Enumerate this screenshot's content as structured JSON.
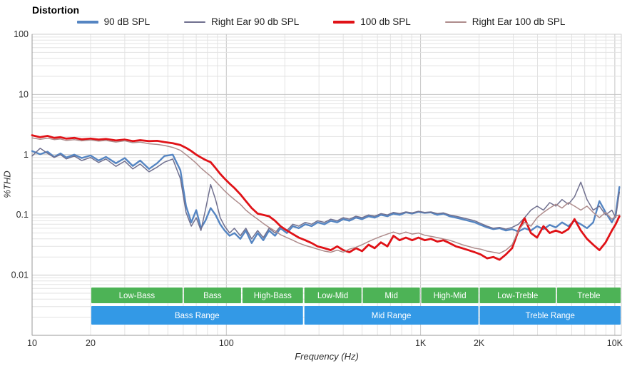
{
  "title": "Distortion",
  "chart_data": {
    "type": "line",
    "title": "Distortion",
    "xlabel": "Frequency (Hz)",
    "ylabel": "%THD",
    "x_scale": "log",
    "y_scale": "log",
    "grid": true,
    "legend_position": "top",
    "xlim": [
      10,
      10800
    ],
    "ylim": [
      0.001,
      100
    ],
    "x_ticks": [
      {
        "v": 10,
        "label": "10"
      },
      {
        "v": 20,
        "label": "20"
      },
      {
        "v": 100,
        "label": "100"
      },
      {
        "v": 1000,
        "label": "1K"
      },
      {
        "v": 2000,
        "label": "2K"
      },
      {
        "v": 10000,
        "label": "10K"
      }
    ],
    "y_ticks": [
      {
        "v": 100,
        "label": "100"
      },
      {
        "v": 10,
        "label": "10"
      },
      {
        "v": 1,
        "label": "1"
      },
      {
        "v": 0.1,
        "label": "0.1"
      },
      {
        "v": 0.01,
        "label": "0.01"
      }
    ],
    "x": [
      10,
      11,
      12,
      13,
      14,
      15,
      16.5,
      18,
      20,
      22,
      24,
      27,
      30,
      33,
      36,
      40,
      44,
      48,
      53,
      58,
      62,
      66,
      70,
      74,
      78,
      83,
      88,
      93,
      98,
      104,
      110,
      118,
      126,
      135,
      145,
      155,
      166,
      178,
      190,
      205,
      220,
      236,
      255,
      275,
      295,
      320,
      345,
      372,
      400,
      430,
      465,
      500,
      540,
      580,
      625,
      675,
      725,
      780,
      840,
      905,
      975,
      1050,
      1130,
      1220,
      1310,
      1410,
      1520,
      1640,
      1760,
      1900,
      2040,
      2200,
      2370,
      2550,
      2750,
      2960,
      3190,
      3430,
      3700,
      3980,
      4290,
      4620,
      4970,
      5350,
      5760,
      6200,
      6680,
      7190,
      7740,
      8330,
      8970,
      9660,
      10100,
      10560
    ],
    "series": [
      {
        "name": "90 dB SPL",
        "color": "#5585c2",
        "width": 2.4,
        "values": [
          1.15,
          1.02,
          1.12,
          0.92,
          1.05,
          0.9,
          1.0,
          0.88,
          0.97,
          0.8,
          0.92,
          0.72,
          0.88,
          0.65,
          0.8,
          0.58,
          0.72,
          0.95,
          1.0,
          0.55,
          0.14,
          0.075,
          0.12,
          0.06,
          0.08,
          0.13,
          0.1,
          0.07,
          0.055,
          0.045,
          0.05,
          0.04,
          0.055,
          0.034,
          0.05,
          0.038,
          0.055,
          0.045,
          0.06,
          0.05,
          0.065,
          0.06,
          0.07,
          0.065,
          0.075,
          0.07,
          0.08,
          0.075,
          0.085,
          0.08,
          0.09,
          0.085,
          0.095,
          0.09,
          0.1,
          0.095,
          0.105,
          0.1,
          0.11,
          0.105,
          0.112,
          0.108,
          0.11,
          0.1,
          0.105,
          0.095,
          0.09,
          0.085,
          0.08,
          0.075,
          0.068,
          0.062,
          0.058,
          0.06,
          0.055,
          0.058,
          0.053,
          0.06,
          0.055,
          0.065,
          0.058,
          0.068,
          0.062,
          0.075,
          0.065,
          0.08,
          0.07,
          0.06,
          0.075,
          0.17,
          0.11,
          0.075,
          0.1,
          0.29
        ]
      },
      {
        "name": "Right Ear 90 db SPL",
        "color": "#70708f",
        "width": 1.5,
        "values": [
          0.95,
          1.28,
          1.05,
          0.9,
          1.0,
          0.85,
          0.95,
          0.8,
          0.9,
          0.74,
          0.85,
          0.64,
          0.78,
          0.58,
          0.7,
          0.52,
          0.62,
          0.75,
          0.85,
          0.4,
          0.11,
          0.065,
          0.09,
          0.055,
          0.12,
          0.32,
          0.18,
          0.09,
          0.065,
          0.05,
          0.06,
          0.045,
          0.06,
          0.04,
          0.055,
          0.042,
          0.06,
          0.05,
          0.065,
          0.055,
          0.07,
          0.065,
          0.075,
          0.07,
          0.08,
          0.075,
          0.085,
          0.08,
          0.09,
          0.085,
          0.095,
          0.09,
          0.1,
          0.095,
          0.105,
          0.1,
          0.11,
          0.105,
          0.112,
          0.108,
          0.115,
          0.11,
          0.112,
          0.105,
          0.108,
          0.1,
          0.095,
          0.09,
          0.085,
          0.08,
          0.072,
          0.065,
          0.06,
          0.062,
          0.058,
          0.062,
          0.07,
          0.09,
          0.12,
          0.14,
          0.12,
          0.16,
          0.14,
          0.18,
          0.15,
          0.2,
          0.35,
          0.18,
          0.12,
          0.14,
          0.1,
          0.12,
          0.09,
          0.24
        ]
      },
      {
        "name": "100 db SPL",
        "color": "#e01217",
        "width": 2.8,
        "values": [
          2.1,
          1.95,
          2.05,
          1.9,
          1.95,
          1.85,
          1.9,
          1.8,
          1.85,
          1.78,
          1.82,
          1.72,
          1.78,
          1.68,
          1.74,
          1.68,
          1.7,
          1.62,
          1.55,
          1.45,
          1.3,
          1.15,
          1.0,
          0.9,
          0.82,
          0.75,
          0.6,
          0.48,
          0.4,
          0.33,
          0.28,
          0.22,
          0.17,
          0.13,
          0.105,
          0.1,
          0.095,
          0.08,
          0.065,
          0.055,
          0.048,
          0.042,
          0.038,
          0.034,
          0.03,
          0.028,
          0.026,
          0.03,
          0.026,
          0.024,
          0.028,
          0.025,
          0.032,
          0.028,
          0.035,
          0.03,
          0.045,
          0.038,
          0.042,
          0.038,
          0.042,
          0.038,
          0.04,
          0.036,
          0.038,
          0.034,
          0.03,
          0.028,
          0.026,
          0.024,
          0.022,
          0.019,
          0.02,
          0.018,
          0.022,
          0.028,
          0.055,
          0.088,
          0.05,
          0.042,
          0.065,
          0.05,
          0.055,
          0.05,
          0.058,
          0.085,
          0.055,
          0.04,
          0.032,
          0.026,
          0.035,
          0.055,
          0.07,
          0.095
        ]
      },
      {
        "name": "Right Ear 100 db SPL",
        "color": "#ae8c8c",
        "width": 1.5,
        "values": [
          1.9,
          1.8,
          1.88,
          1.78,
          1.82,
          1.72,
          1.78,
          1.7,
          1.75,
          1.68,
          1.72,
          1.62,
          1.7,
          1.58,
          1.62,
          1.52,
          1.48,
          1.42,
          1.32,
          1.18,
          1.0,
          0.85,
          0.72,
          0.6,
          0.52,
          0.44,
          0.36,
          0.3,
          0.25,
          0.21,
          0.18,
          0.15,
          0.12,
          0.1,
          0.085,
          0.072,
          0.062,
          0.054,
          0.047,
          0.042,
          0.038,
          0.034,
          0.031,
          0.029,
          0.027,
          0.025,
          0.024,
          0.026,
          0.024,
          0.027,
          0.029,
          0.032,
          0.036,
          0.04,
          0.044,
          0.048,
          0.052,
          0.048,
          0.052,
          0.048,
          0.05,
          0.046,
          0.044,
          0.042,
          0.04,
          0.038,
          0.035,
          0.032,
          0.03,
          0.028,
          0.027,
          0.025,
          0.024,
          0.023,
          0.026,
          0.032,
          0.055,
          0.075,
          0.065,
          0.09,
          0.11,
          0.13,
          0.15,
          0.13,
          0.16,
          0.14,
          0.12,
          0.14,
          0.11,
          0.09,
          0.11,
          0.085,
          0.095,
          0.1
        ]
      }
    ],
    "bands": {
      "fine": {
        "color": "#4db356",
        "segments": [
          {
            "label": "Low-Bass",
            "from": 20,
            "to": 60
          },
          {
            "label": "Bass",
            "from": 60,
            "to": 120
          },
          {
            "label": "High-Bass",
            "from": 120,
            "to": 250
          },
          {
            "label": "Low-Mid",
            "from": 250,
            "to": 500
          },
          {
            "label": "Mid",
            "from": 500,
            "to": 1000
          },
          {
            "label": "High-Mid",
            "from": 1000,
            "to": 2000
          },
          {
            "label": "Low-Treble",
            "from": 2000,
            "to": 5000
          },
          {
            "label": "Treble",
            "from": 5000,
            "to": 10800
          }
        ]
      },
      "coarse": {
        "color": "#3399e6",
        "segments": [
          {
            "label": "Bass Range",
            "from": 20,
            "to": 250
          },
          {
            "label": "Mid Range",
            "from": 250,
            "to": 2000
          },
          {
            "label": "Treble Range",
            "from": 2000,
            "to": 10800
          }
        ]
      }
    }
  }
}
